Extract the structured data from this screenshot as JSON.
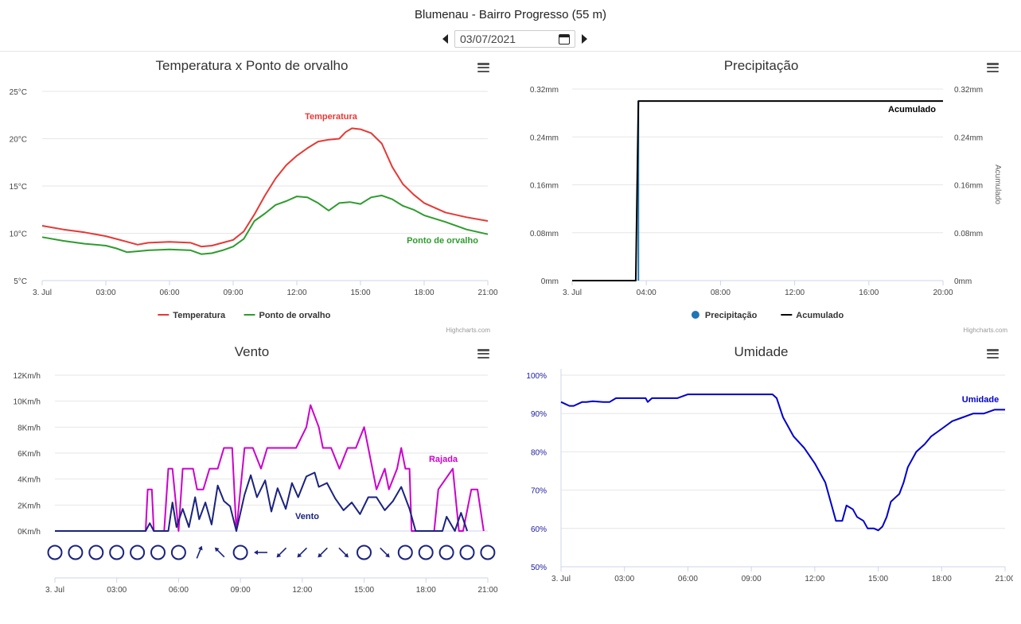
{
  "header": {
    "station": "Blumenau - Bairro Progresso (55 m)",
    "date": "03/07/2021"
  },
  "credits": "Highcharts.com",
  "chart_data": [
    {
      "id": "temp",
      "type": "line",
      "title": "Temperatura x Ponto de orvalho",
      "x_ticks": [
        "3. Jul",
        "03:00",
        "06:00",
        "09:00",
        "12:00",
        "15:00",
        "18:00",
        "21:00"
      ],
      "x_range": [
        0,
        21
      ],
      "y_ticks": [
        "5°C",
        "10°C",
        "15°C",
        "20°C",
        "25°C"
      ],
      "ylim": [
        5,
        25
      ],
      "grid": true,
      "legend": "bottom-center",
      "series": [
        {
          "name": "Temperatura",
          "color": "#e53935",
          "x": [
            0,
            1,
            2,
            3,
            3.5,
            4,
            4.5,
            5,
            6,
            7,
            7.5,
            8,
            8.5,
            9,
            9.5,
            10,
            10.5,
            11,
            11.5,
            12,
            12.5,
            13,
            13.5,
            14,
            14.3,
            14.6,
            15,
            15.5,
            16,
            16.5,
            17,
            17.5,
            18,
            19,
            20,
            21
          ],
          "y": [
            10.8,
            10.4,
            10.1,
            9.7,
            9.4,
            9.1,
            8.8,
            9,
            9.1,
            9,
            8.6,
            8.7,
            9,
            9.3,
            10.2,
            12,
            14,
            15.8,
            17.2,
            18.2,
            19,
            19.7,
            19.9,
            20,
            20.7,
            21.1,
            21,
            20.6,
            19.5,
            17,
            15.2,
            14.1,
            13.2,
            12.2,
            11.7,
            11.3
          ]
        },
        {
          "name": "Ponto de orvalho",
          "color": "#2e9c2e",
          "x": [
            0,
            1,
            2,
            3,
            3.5,
            4,
            4.5,
            5,
            6,
            7,
            7.5,
            8,
            8.5,
            9,
            9.5,
            10,
            10.5,
            11,
            11.5,
            12,
            12.5,
            13,
            13.5,
            14,
            14.5,
            15,
            15.5,
            16,
            16.5,
            17,
            17.5,
            18,
            19,
            20,
            21
          ],
          "y": [
            9.6,
            9.2,
            8.9,
            8.7,
            8.4,
            8,
            8.1,
            8.2,
            8.3,
            8.2,
            7.8,
            7.9,
            8.2,
            8.6,
            9.4,
            11.3,
            12.1,
            13,
            13.4,
            13.9,
            13.8,
            13.2,
            12.4,
            13.2,
            13.3,
            13.1,
            13.8,
            14,
            13.6,
            12.9,
            12.5,
            11.9,
            11.2,
            10.4,
            9.9
          ]
        }
      ]
    },
    {
      "id": "precip",
      "type": "line",
      "title": "Precipitação",
      "x_ticks": [
        "3. Jul",
        "04:00",
        "08:00",
        "12:00",
        "16:00",
        "20:00"
      ],
      "x_range": [
        0,
        21
      ],
      "y_ticks": [
        "0mm",
        "0.08mm",
        "0.16mm",
        "0.24mm",
        "0.32mm"
      ],
      "ylim": [
        0,
        0.32
      ],
      "y2_label": "Acumulado",
      "grid": true,
      "legend": "bottom-center",
      "series": [
        {
          "name": "Precipitação",
          "color": "#1f77b4",
          "x": [
            3.75
          ],
          "y": [
            0.3
          ]
        },
        {
          "name": "Acumulado",
          "color": "#000000",
          "x": [
            0,
            3.6,
            3.75,
            21
          ],
          "y": [
            0,
            0,
            0.3,
            0.3
          ]
        }
      ]
    },
    {
      "id": "wind",
      "type": "line",
      "title": "Vento",
      "x_ticks": [
        "3. Jul",
        "03:00",
        "06:00",
        "09:00",
        "12:00",
        "15:00",
        "18:00",
        "21:00"
      ],
      "x_range": [
        0,
        21
      ],
      "y_ticks": [
        "0Km/h",
        "2Km/h",
        "4Km/h",
        "6Km/h",
        "8Km/h",
        "10Km/h",
        "12Km/h"
      ],
      "ylim": [
        0,
        12
      ],
      "grid": true,
      "series": [
        {
          "name": "Rajada",
          "color": "#cc00cc",
          "x": [
            0,
            4.4,
            4.5,
            4.7,
            4.8,
            5.3,
            5.5,
            5.7,
            6,
            6.2,
            6.7,
            6.9,
            7.2,
            7.5,
            7.9,
            8.2,
            8.6,
            8.8,
            9.2,
            9.6,
            10,
            10.3,
            10.8,
            11.2,
            11.7,
            12.2,
            12.4,
            12.8,
            13,
            13.4,
            13.8,
            14.2,
            14.6,
            15,
            15.2,
            15.6,
            16,
            16.2,
            16.6,
            16.8,
            17,
            17.2,
            17.3,
            18,
            18.4,
            18.6,
            19.3,
            19.6,
            19.8,
            20.2,
            20.5,
            20.8
          ],
          "y": [
            0,
            0,
            3.2,
            3.2,
            0,
            0,
            4.8,
            4.8,
            0,
            4.8,
            4.8,
            3.2,
            3.2,
            4.8,
            4.8,
            6.4,
            6.4,
            0,
            6.4,
            6.4,
            4.8,
            6.4,
            6.4,
            6.4,
            6.4,
            8,
            9.7,
            8,
            6.4,
            6.4,
            4.8,
            6.4,
            6.4,
            8,
            6.4,
            3.2,
            4.8,
            3.2,
            4.8,
            6.4,
            4.8,
            4.8,
            0,
            0,
            0,
            3.2,
            4.8,
            0,
            0,
            3.2,
            3.2,
            0
          ]
        },
        {
          "name": "Vento",
          "color": "#1a237e",
          "x": [
            0,
            4.4,
            4.6,
            4.8,
            5.5,
            5.7,
            5.9,
            6.2,
            6.5,
            6.8,
            7,
            7.3,
            7.6,
            7.9,
            8.2,
            8.5,
            8.8,
            9.2,
            9.5,
            9.8,
            10.2,
            10.5,
            10.8,
            11.2,
            11.5,
            11.8,
            12.2,
            12.6,
            12.8,
            13.2,
            13.6,
            14,
            14.4,
            14.8,
            15.2,
            15.6,
            16,
            16.4,
            16.8,
            17.2,
            17.5,
            18,
            18.5,
            18.8,
            19,
            19.4,
            19.7,
            20
          ],
          "y": [
            0,
            0,
            0.6,
            0,
            0,
            2.2,
            0.3,
            1.7,
            0.3,
            2.6,
            0.9,
            2.2,
            0.5,
            3.5,
            2.3,
            1.9,
            0,
            2.8,
            4.3,
            2.6,
            3.9,
            1.5,
            3.3,
            1.7,
            3.7,
            2.6,
            4.2,
            4.5,
            3.4,
            3.7,
            2.5,
            1.6,
            2.2,
            1.3,
            2.6,
            2.6,
            1.6,
            2.3,
            3.4,
            1.7,
            0,
            0,
            0,
            0,
            1.1,
            0,
            1.4,
            0
          ]
        }
      ],
      "direction_icons": [
        "calm",
        "calm",
        "calm",
        "calm",
        "calm",
        "calm",
        "calm",
        "nne",
        "nw",
        "calm",
        "w",
        "sw",
        "sw",
        "sw",
        "se",
        "calm",
        "se",
        "calm",
        "calm",
        "calm",
        "calm",
        "calm"
      ]
    },
    {
      "id": "humid",
      "type": "line",
      "title": "Umidade",
      "x_ticks": [
        "3. Jul",
        "03:00",
        "06:00",
        "09:00",
        "12:00",
        "15:00",
        "18:00",
        "21:00"
      ],
      "x_range": [
        0,
        21
      ],
      "y_ticks": [
        "50%",
        "60%",
        "70%",
        "80%",
        "90%",
        "100%"
      ],
      "ylim": [
        50,
        100
      ],
      "grid": true,
      "series": [
        {
          "name": "Umidade",
          "color": "#0000cc",
          "x": [
            0,
            0.2,
            0.4,
            0.6,
            1,
            1.2,
            1.5,
            2,
            2.3,
            2.6,
            3,
            3.5,
            4,
            4.1,
            4.3,
            5,
            5.5,
            6,
            7,
            8,
            9,
            9.5,
            10,
            10.2,
            10.5,
            11,
            11.5,
            12,
            12.5,
            12.8,
            13,
            13.3,
            13.5,
            13.8,
            14,
            14.3,
            14.5,
            14.8,
            15,
            15.2,
            15.4,
            15.6,
            15.8,
            16,
            16.2,
            16.4,
            16.8,
            17.2,
            17.5,
            18,
            18.5,
            19,
            19.5,
            20,
            20.5,
            21
          ],
          "y": [
            93,
            92.5,
            92,
            92,
            93,
            93,
            93.2,
            93,
            93,
            94,
            94,
            94,
            94,
            93,
            94,
            94,
            94,
            95,
            95,
            95,
            95,
            95,
            95,
            94,
            89,
            84,
            81,
            77,
            72,
            66,
            62,
            62,
            66,
            65,
            63,
            62,
            60,
            60,
            59.5,
            60.5,
            63,
            67,
            68,
            69,
            72,
            76,
            80,
            82,
            84,
            86,
            88,
            89,
            90,
            90,
            91,
            91
          ]
        }
      ]
    }
  ]
}
